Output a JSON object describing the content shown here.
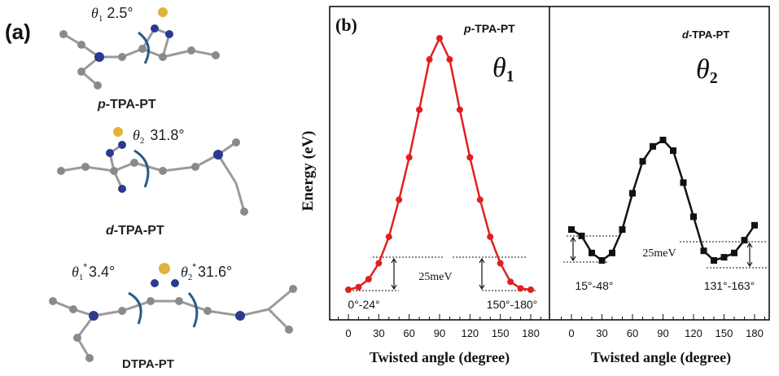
{
  "panel_a": {
    "label": "(a)",
    "molecules": [
      {
        "name_prefix": "p",
        "name_suffix": "-TPA-PT",
        "angles": [
          {
            "symbol": "θ",
            "sub": "1",
            "star": "",
            "value": "2.5°"
          }
        ]
      },
      {
        "name_prefix": "d",
        "name_suffix": "-TPA-PT",
        "angles": [
          {
            "symbol": "θ",
            "sub": "2",
            "star": "",
            "value": "31.8°"
          }
        ]
      },
      {
        "name_prefix": "",
        "name_suffix": "DTPA-PT",
        "angles": [
          {
            "symbol": "θ",
            "sub": "1",
            "star": "*",
            "value": "3.4°"
          },
          {
            "symbol": "θ",
            "sub": "2",
            "star": "*",
            "value": "31.6°"
          }
        ]
      }
    ]
  },
  "panel_b": {
    "label": "(b)",
    "ylabel": "Energy (eV)",
    "colors": {
      "red": "#e02020",
      "black": "#111111",
      "frame": "#000000"
    }
  },
  "chart_data": [
    {
      "type": "line",
      "title_prefix": "p",
      "title_suffix": "-TPA-PT",
      "symbol": "θ",
      "symbol_sub": "1",
      "xlabel": "Twisted angle (degree)",
      "ylabel": "Energy (eV)",
      "xlim": [
        -10,
        190
      ],
      "ylim": [
        0,
        1
      ],
      "x_ticks": [
        0,
        30,
        60,
        90,
        120,
        150,
        180
      ],
      "x_tick_labels": [
        "0",
        "30",
        "60",
        "90",
        "120",
        "150",
        "180"
      ],
      "marker": "circle",
      "color": "#e02020",
      "series": [
        {
          "x": [
            0,
            10,
            20,
            30,
            40,
            50,
            60,
            70,
            80,
            90,
            100,
            110,
            120,
            130,
            140,
            150,
            160,
            170,
            180
          ],
          "y": [
            0.0,
            0.01,
            0.04,
            0.1,
            0.2,
            0.34,
            0.5,
            0.68,
            0.87,
            0.95,
            0.87,
            0.68,
            0.5,
            0.34,
            0.2,
            0.1,
            0.03,
            0.005,
            0.0
          ]
        }
      ],
      "annotations": {
        "range_left": "0°-24°",
        "range_right": "150°-180°",
        "barrier": "25meV"
      }
    },
    {
      "type": "line",
      "title_prefix": "d",
      "title_suffix": "-TPA-PT",
      "symbol": "θ",
      "symbol_sub": "2",
      "xlabel": "Twisted angle (degree)",
      "ylabel": "Energy (eV)",
      "xlim": [
        -10,
        190
      ],
      "ylim": [
        0,
        1
      ],
      "x_ticks": [
        0,
        30,
        60,
        90,
        120,
        150,
        180
      ],
      "x_tick_labels": [
        "0",
        "30",
        "60",
        "90",
        "120",
        "150",
        "180"
      ],
      "marker": "square",
      "color": "#111111",
      "series": [
        {
          "x": [
            0,
            10,
            20,
            30,
            40,
            50,
            60,
            70,
            80,
            90,
            100,
            110,
            120,
            130,
            140,
            150,
            160,
            170,
            180
          ],
          "y": [
            0.28,
            0.25,
            0.17,
            0.135,
            0.17,
            0.28,
            0.45,
            0.6,
            0.67,
            0.7,
            0.65,
            0.5,
            0.34,
            0.18,
            0.135,
            0.15,
            0.17,
            0.23,
            0.3
          ]
        }
      ],
      "annotations": {
        "range_left": "15°-48°",
        "range_right": "131°-163°",
        "barrier": "25meV"
      }
    }
  ]
}
